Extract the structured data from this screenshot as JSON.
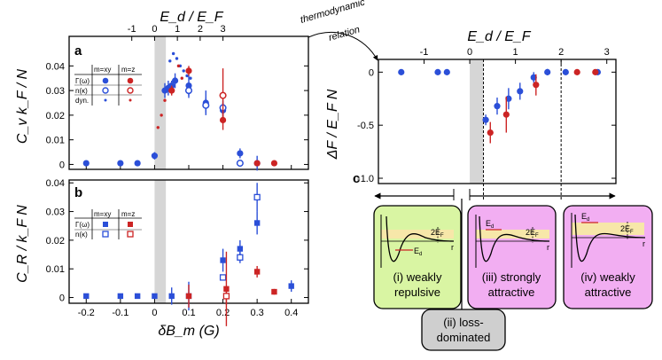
{
  "colors": {
    "blue": "#2b4fd8",
    "red": "#cc2424",
    "shade": "#d6d6d6",
    "green_box": "#d9f5a3",
    "pink_box": "#f2aef2",
    "grey_box": "#cfcfcf",
    "band": "#f7e7a9"
  },
  "thermo_label": [
    "thermodynamic",
    "relation"
  ],
  "chart_data": [
    {
      "id": "a",
      "type": "scatter",
      "panel_label": "a",
      "title": "",
      "xlabel": "δB_m (G)",
      "ylabel": "C_v k_F / N",
      "top_xlabel": "E_d / E_F",
      "xlim": [
        -0.25,
        0.45
      ],
      "ylim": [
        -0.002,
        0.052
      ],
      "yticks": [
        0,
        0.01,
        0.02,
        0.03,
        0.04
      ],
      "ytick_labels": [
        "0",
        "0.01",
        "0.02",
        "0.03",
        "0.04"
      ],
      "top_ticks": [
        -1,
        0,
        1,
        2,
        3
      ],
      "top_map": {
        "slope": 0.0667,
        "offset": 0.0
      },
      "shaded_region": [
        0,
        0.033
      ],
      "legend": {
        "headers": [
          "m=xy",
          "m=z"
        ],
        "rows": [
          "Γ(ω)",
          "n(κ)",
          "dyn."
        ]
      },
      "series": [
        {
          "name": "Γ(ω) m=xy",
          "marker": "filled-circle",
          "color": "blue",
          "x": [
            -0.2,
            -0.1,
            -0.05,
            0.0,
            0.03,
            0.04,
            0.05,
            0.06,
            0.1,
            0.15,
            0.2,
            0.25,
            0.3
          ],
          "y": [
            0.0005,
            0.0005,
            0.0005,
            0.0035,
            0.03,
            0.031,
            0.032,
            0.034,
            0.032,
            0.025,
            0.022,
            0.0045,
            0.0005
          ],
          "err": [
            0.0005,
            0.0003,
            0.0003,
            0.0015,
            0.003,
            0.003,
            0.002,
            0.003,
            0.004,
            0.005,
            0.003,
            0.002,
            0.003
          ]
        },
        {
          "name": "n(κ) m=xy",
          "marker": "open-circle",
          "color": "blue",
          "x": [
            0.1,
            0.15,
            0.2,
            0.25
          ],
          "y": [
            0.03,
            0.024,
            0.023,
            0.0005
          ],
          "err": [
            0.003,
            0.003,
            0.003,
            0.001
          ]
        },
        {
          "name": "dyn. m=xy",
          "marker": "small-dot",
          "color": "blue",
          "x": [
            0.035,
            0.045,
            0.055,
            0.065,
            0.075,
            0.085,
            0.095,
            0.105
          ],
          "y": [
            0.03,
            0.042,
            0.045,
            0.043,
            0.04,
            0.038,
            0.036,
            0.035
          ],
          "err": [
            0,
            0,
            0,
            0,
            0,
            0,
            0,
            0
          ]
        },
        {
          "name": "Γ(ω) m=z",
          "marker": "filled-circle",
          "color": "red",
          "x": [
            0.05,
            0.1,
            0.2,
            0.35,
            0.3
          ],
          "y": [
            0.03,
            0.038,
            0.018,
            0.0005,
            0.0005
          ],
          "err": [
            0.002,
            0.002,
            0.004,
            0.0005,
            0.0005
          ]
        },
        {
          "name": "n(κ) m=z",
          "marker": "open-circle",
          "color": "red",
          "x": [
            0.2
          ],
          "y": [
            0.028
          ],
          "err": [
            0.011
          ]
        },
        {
          "name": "dyn. m=z",
          "marker": "small-dot",
          "color": "red",
          "x": [
            0.01,
            0.02,
            0.03,
            0.07,
            0.08
          ],
          "y": [
            0.015,
            0.02,
            0.026,
            0.04,
            0.035
          ],
          "err": [
            0,
            0,
            0,
            0,
            0
          ]
        }
      ]
    },
    {
      "id": "b",
      "type": "scatter",
      "panel_label": "b",
      "title": "",
      "xlabel": "δB_m (G)",
      "ylabel": "C_R / k_F N",
      "xlim": [
        -0.25,
        0.45
      ],
      "ylim": [
        -0.002,
        0.041
      ],
      "yticks": [
        0,
        0.01,
        0.02,
        0.03,
        0.04
      ],
      "ytick_labels": [
        "0",
        "0.01",
        "0.02",
        "0.03",
        "0.04"
      ],
      "xticks": [
        -0.2,
        -0.1,
        0,
        0.1,
        0.2,
        0.3,
        0.4
      ],
      "xtick_labels": [
        "-0.2",
        "-0.1",
        "0",
        "0.1",
        "0.2",
        "0.3",
        "0.4"
      ],
      "shaded_region": [
        0,
        0.033
      ],
      "legend": {
        "headers": [
          "m=xy",
          "m=z"
        ],
        "rows": [
          "Γ(ω)",
          "n(κ)"
        ]
      },
      "series": [
        {
          "name": "Γ(ω) m=xy",
          "marker": "filled-square",
          "color": "blue",
          "x": [
            -0.2,
            -0.1,
            -0.05,
            0.0,
            0.05,
            0.1,
            0.2,
            0.25,
            0.3,
            0.4
          ],
          "y": [
            0.0005,
            0.0005,
            0.0005,
            0.0005,
            0.0005,
            0.0005,
            0.013,
            0.017,
            0.026,
            0.004
          ],
          "err": [
            0.0005,
            0.0005,
            0.0005,
            0.0008,
            0.003,
            0.005,
            0.004,
            0.003,
            0.004,
            0.002
          ]
        },
        {
          "name": "n(κ) m=xy",
          "marker": "open-square",
          "color": "blue",
          "x": [
            0.2,
            0.25,
            0.3
          ],
          "y": [
            0.007,
            0.014,
            0.035
          ],
          "err": [
            0.001,
            0.002,
            0.005
          ]
        },
        {
          "name": "Γ(ω) m=z",
          "marker": "filled-square",
          "color": "red",
          "x": [
            0.1,
            0.21,
            0.3,
            0.35
          ],
          "y": [
            0.0005,
            0.003,
            0.009,
            0.002
          ],
          "err": [
            0.004,
            0.013,
            0.002,
            0.001
          ]
        },
        {
          "name": "n(κ) m=z",
          "marker": "open-square",
          "color": "red",
          "x": [
            0.21
          ],
          "y": [
            0.0005
          ],
          "err": [
            0.003
          ]
        }
      ]
    },
    {
      "id": "c",
      "type": "scatter",
      "panel_label": "c",
      "title": "",
      "xlabel": "",
      "ylabel": "ΔF / E_F N",
      "top_xlabel": "E_d / E_F",
      "xlim": [
        -2.0,
        3.2
      ],
      "ylim": [
        -1.05,
        0.12
      ],
      "yticks": [
        0,
        -0.5,
        -1.0
      ],
      "ytick_labels": [
        "0",
        "-0.5",
        "-1.0"
      ],
      "xticks": [
        -1,
        0,
        1,
        2,
        3
      ],
      "xtick_labels": [
        "-1",
        "0",
        "1",
        "2",
        "3"
      ],
      "shaded_region": [
        0,
        0.3
      ],
      "dashed_lines": [
        0.3,
        2.0
      ],
      "series": [
        {
          "name": "m=xy",
          "marker": "filled-circle",
          "color": "blue",
          "x": [
            -1.5,
            -0.7,
            -0.5,
            0.35,
            0.6,
            0.85,
            1.1,
            1.4,
            1.7,
            2.1,
            2.8
          ],
          "y": [
            0.0,
            0.0,
            0.0,
            -0.45,
            -0.32,
            -0.25,
            -0.18,
            -0.05,
            0.0,
            0.0,
            0.0
          ],
          "err": [
            0,
            0,
            0,
            0.05,
            0.08,
            0.1,
            0.08,
            0.05,
            0.03,
            0.02,
            0.02
          ]
        },
        {
          "name": "m=z",
          "marker": "filled-circle",
          "color": "red",
          "x": [
            0.45,
            0.8,
            1.45,
            2.35,
            2.75
          ],
          "y": [
            -0.57,
            -0.4,
            -0.12,
            0.0,
            0.0
          ],
          "err": [
            0.1,
            0.17,
            0.1,
            0.02,
            0.02
          ]
        }
      ]
    }
  ],
  "regimes": [
    {
      "id": "i",
      "label_lines": [
        "(i) weakly",
        "repulsive"
      ],
      "pot_labels": [
        "2E",
        "F",
        "r",
        "E",
        "d"
      ]
    },
    {
      "id": "ii",
      "label_lines": [
        "(ii) loss-",
        "dominated"
      ]
    },
    {
      "id": "iii",
      "label_lines": [
        "(iii) strongly",
        "attractive"
      ],
      "pot_labels": [
        "2E",
        "F",
        "r",
        "E",
        "d"
      ]
    },
    {
      "id": "iv",
      "label_lines": [
        "(iv) weakly",
        "attractive"
      ],
      "pot_labels": [
        "2E",
        "F",
        "r",
        "E",
        "d"
      ]
    }
  ]
}
